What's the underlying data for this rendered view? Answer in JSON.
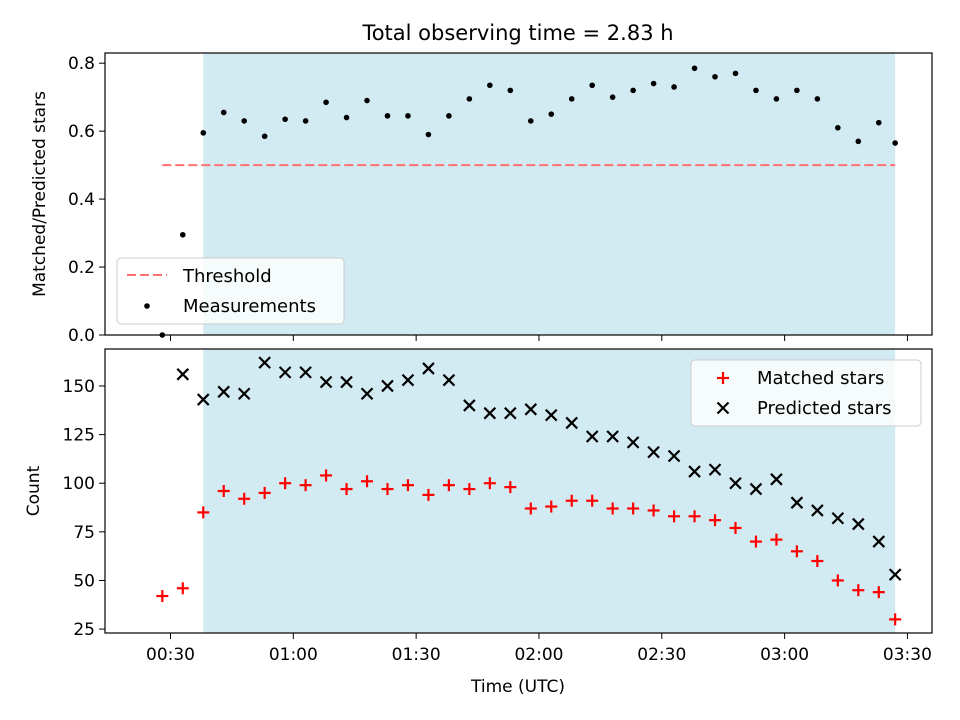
{
  "title": "Total observing time = 2.83 h",
  "xlabel": "Time (UTC)",
  "x_tick_labels": [
    "00:30",
    "01:00",
    "01:30",
    "02:00",
    "02:30",
    "03:00",
    "03:30"
  ],
  "colors": {
    "shade": "#add8e6",
    "threshold": "#ff7070",
    "measurements": "#000000",
    "matched": "#ff0000",
    "predicted": "#000000"
  },
  "chart_data": [
    {
      "type": "scatter",
      "panel": "top",
      "ylabel": "Matched/Predicted stars",
      "ylim": [
        0,
        0.83
      ],
      "y_ticks": [
        0.0,
        0.2,
        0.4,
        0.6,
        0.8
      ],
      "y_tick_labels": [
        "0.0",
        "0.2",
        "0.4",
        "0.6",
        "0.8"
      ],
      "x_range": [
        "00:14",
        "03:36"
      ],
      "shaded_interval": [
        "00:38",
        "03:27"
      ],
      "legend_position": "lower left",
      "threshold": {
        "name": "Threshold",
        "value": 0.5,
        "x_start": "00:28",
        "x_end": "03:27",
        "style": "dashed"
      },
      "series": [
        {
          "name": "Measurements",
          "marker": "dot",
          "x": [
            "00:28",
            "00:33",
            "00:38",
            "00:43",
            "00:48",
            "00:53",
            "00:58",
            "01:03",
            "01:08",
            "01:13",
            "01:18",
            "01:23",
            "01:28",
            "01:33",
            "01:38",
            "01:43",
            "01:48",
            "01:53",
            "01:58",
            "02:03",
            "02:08",
            "02:13",
            "02:18",
            "02:23",
            "02:28",
            "02:33",
            "02:38",
            "02:43",
            "02:48",
            "02:53",
            "02:58",
            "03:03",
            "03:08",
            "03:13",
            "03:18",
            "03:23",
            "03:27"
          ],
          "y": [
            0.0,
            0.295,
            0.595,
            0.655,
            0.63,
            0.585,
            0.635,
            0.63,
            0.685,
            0.64,
            0.69,
            0.645,
            0.645,
            0.59,
            0.645,
            0.695,
            0.735,
            0.72,
            0.63,
            0.65,
            0.695,
            0.735,
            0.7,
            0.72,
            0.74,
            0.73,
            0.785,
            0.76,
            0.77,
            0.72,
            0.695,
            0.72,
            0.695,
            0.61,
            0.57,
            0.625,
            0.565
          ]
        }
      ]
    },
    {
      "type": "scatter",
      "panel": "bottom",
      "ylabel": "Count",
      "ylim": [
        23,
        169
      ],
      "y_ticks": [
        25,
        50,
        75,
        100,
        125,
        150
      ],
      "y_tick_labels": [
        "25",
        "50",
        "75",
        "100",
        "125",
        "150"
      ],
      "x_range": [
        "00:14",
        "03:36"
      ],
      "shaded_interval": [
        "00:38",
        "03:27"
      ],
      "legend_position": "upper right",
      "series": [
        {
          "name": "Matched stars",
          "marker": "plus",
          "x": [
            "00:28",
            "00:33",
            "00:38",
            "00:43",
            "00:48",
            "00:53",
            "00:58",
            "01:03",
            "01:08",
            "01:13",
            "01:18",
            "01:23",
            "01:28",
            "01:33",
            "01:38",
            "01:43",
            "01:48",
            "01:53",
            "01:58",
            "02:03",
            "02:08",
            "02:13",
            "02:18",
            "02:23",
            "02:28",
            "02:33",
            "02:38",
            "02:43",
            "02:48",
            "02:53",
            "02:58",
            "03:03",
            "03:08",
            "03:13",
            "03:18",
            "03:23",
            "03:27"
          ],
          "y": [
            42,
            46,
            85,
            96,
            92,
            95,
            100,
            99,
            104,
            97,
            101,
            97,
            99,
            94,
            99,
            97,
            100,
            98,
            87,
            88,
            91,
            91,
            87,
            87,
            86,
            83,
            83,
            81,
            77,
            70,
            71,
            65,
            60,
            50,
            45,
            44,
            30
          ]
        },
        {
          "name": "Predicted stars",
          "marker": "x",
          "x": [
            "00:33",
            "00:38",
            "00:43",
            "00:48",
            "00:53",
            "00:58",
            "01:03",
            "01:08",
            "01:13",
            "01:18",
            "01:23",
            "01:28",
            "01:33",
            "01:38",
            "01:43",
            "01:48",
            "01:53",
            "01:58",
            "02:03",
            "02:08",
            "02:13",
            "02:18",
            "02:23",
            "02:28",
            "02:33",
            "02:38",
            "02:43",
            "02:48",
            "02:53",
            "02:58",
            "03:03",
            "03:08",
            "03:13",
            "03:18",
            "03:23",
            "03:27"
          ],
          "y": [
            156,
            143,
            147,
            146,
            162,
            157,
            157,
            152,
            152,
            146,
            150,
            153,
            159,
            153,
            140,
            136,
            136,
            138,
            135,
            131,
            124,
            124,
            121,
            116,
            114,
            106,
            107,
            100,
            97,
            102,
            90,
            86,
            82,
            79,
            70,
            53
          ]
        }
      ]
    }
  ]
}
